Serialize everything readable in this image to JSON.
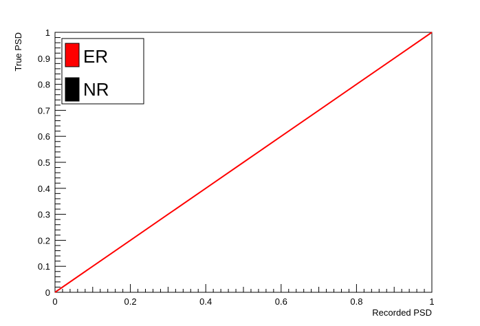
{
  "chart_data": {
    "type": "line",
    "title": "",
    "xlabel": "Recorded PSD",
    "ylabel": "True PSD",
    "xlim": [
      0,
      1
    ],
    "ylim": [
      0,
      1
    ],
    "grid": false,
    "legend_placement": "top-left",
    "x_ticks": [
      0,
      0.2,
      0.4,
      0.6,
      0.8,
      1
    ],
    "x_tick_labels": [
      "0",
      "0.2",
      "0.4",
      "0.6",
      "0.8",
      "1"
    ],
    "y_ticks": [
      0,
      0.1,
      0.2,
      0.3,
      0.4,
      0.5,
      0.6,
      0.7,
      0.8,
      0.9,
      1
    ],
    "y_tick_labels": [
      "0",
      "0.1",
      "0.2",
      "0.3",
      "0.4",
      "0.5",
      "0.6",
      "0.7",
      "0.8",
      "0.9",
      "1"
    ],
    "series": [
      {
        "name": "ER",
        "color": "#ff0000",
        "x": [
          0,
          0.1,
          0.2,
          0.3,
          0.4,
          0.5,
          0.6,
          0.7,
          0.8,
          0.9,
          1.0
        ],
        "y": [
          0,
          0.1,
          0.2,
          0.3,
          0.4,
          0.5,
          0.6,
          0.7,
          0.8,
          0.9,
          1.0
        ]
      },
      {
        "name": "NR",
        "color": "#000000",
        "x": [],
        "y": []
      }
    ]
  }
}
